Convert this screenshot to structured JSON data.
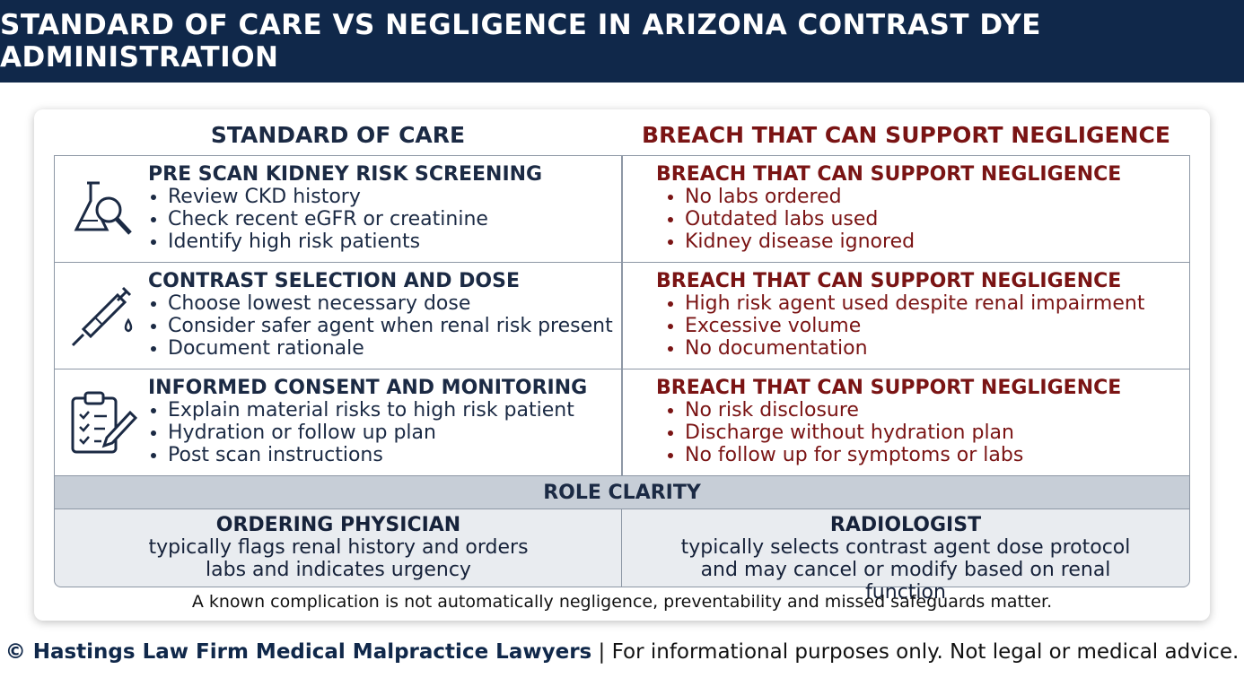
{
  "header": {
    "title": "STANDARD OF CARE VS NEGLIGENCE IN ARIZONA CONTRAST DYE ADMINISTRATION"
  },
  "table": {
    "columns": [
      "STANDARD OF CARE",
      "BREACH THAT CAN SUPPORT NEGLIGENCE"
    ],
    "rows": [
      {
        "standard": {
          "title": "PRE SCAN KIDNEY RISK SCREENING",
          "items": [
            "Review CKD history",
            "Check recent eGFR or creatinine",
            "Identify high risk patients"
          ]
        },
        "breach": {
          "title": "BREACH THAT CAN SUPPORT NEGLIGENCE",
          "items": [
            "No labs ordered",
            "Outdated labs used",
            "Kidney disease ignored"
          ]
        }
      },
      {
        "standard": {
          "title": "CONTRAST SELECTION AND DOSE",
          "items": [
            "Choose lowest necessary dose",
            "Consider safer agent when renal risk present",
            "Document rationale"
          ]
        },
        "breach": {
          "title": "BREACH THAT CAN SUPPORT NEGLIGENCE",
          "items": [
            "High risk agent used despite renal impairment",
            "Excessive volume",
            "No documentation"
          ]
        }
      },
      {
        "standard": {
          "title": "INFORMED CONSENT AND MONITORING",
          "items": [
            "Explain material risks to high risk patient",
            "Hydration or follow up plan",
            "Post scan instructions"
          ]
        },
        "breach": {
          "title": "BREACH THAT CAN SUPPORT NEGLIGENCE",
          "items": [
            "No risk disclosure",
            "Discharge without hydration plan",
            "No follow up for symptoms or labs"
          ]
        }
      }
    ],
    "role_clarity": {
      "title": "ROLE CLARITY",
      "roles": [
        {
          "title": "ORDERING PHYSICIAN",
          "text": "typically flags renal history and orders labs and indicates urgency"
        },
        {
          "title": "RADIOLOGIST",
          "text": "typically selects contrast agent dose protocol and may cancel or modify based on renal function"
        }
      ]
    },
    "note": "A known complication is not automatically negligence, preventability and missed safeguards matter."
  },
  "footer": {
    "firm": "© Hastings Law Firm Medical Malpractice Lawyers",
    "disclaimer": "| For informational purposes only. Not legal or medical advice."
  }
}
